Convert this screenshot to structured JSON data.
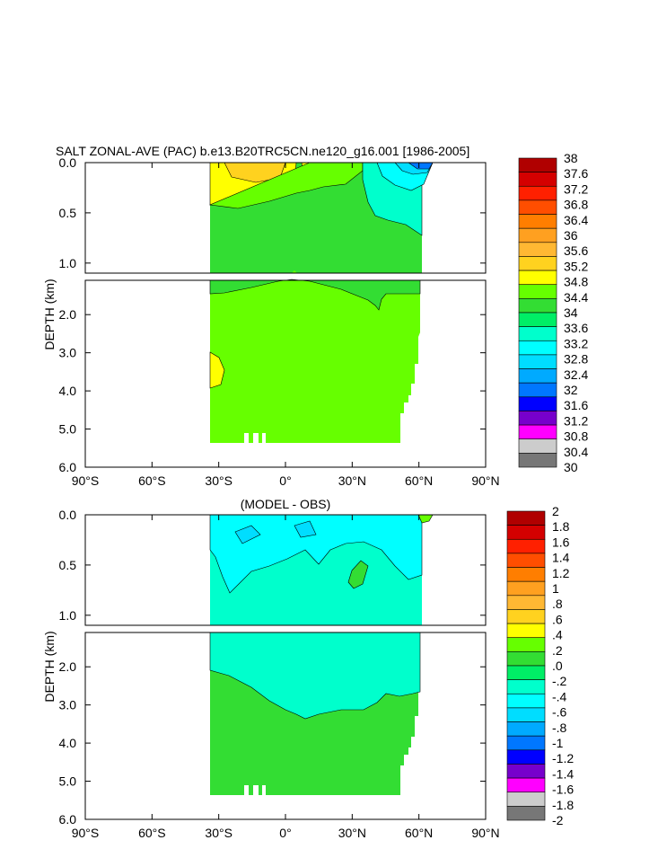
{
  "chart_data": [
    {
      "type": "heatmap",
      "title": "SALT ZONAL-AVE (PAC) b.e13.B20TRC5CN.ne120_g16.001 [1986-2005]",
      "ylabel": "DEPTH (km)",
      "xlabel": "",
      "x_ticks": [
        "90°S",
        "60°S",
        "30°S",
        "0°",
        "30°N",
        "60°N",
        "90°N"
      ],
      "xlim": [
        -90,
        90
      ],
      "y_ticks_upper": [
        "0.0",
        "0.5",
        "1.0"
      ],
      "y_ticks_lower": [
        "2.0",
        "3.0",
        "4.0",
        "5.0",
        "6.0"
      ],
      "ylim": [
        0,
        6
      ],
      "colorbar": {
        "labels": [
          "38",
          "37.6",
          "37.2",
          "36.8",
          "36.4",
          "36",
          "35.6",
          "35.2",
          "34.8",
          "34.4",
          "34",
          "33.6",
          "33.2",
          "32.8",
          "32.4",
          "32",
          "31.6",
          "31.2",
          "30.8",
          "30.4",
          "30"
        ],
        "colors": [
          "#b00000",
          "#d40000",
          "#ff2000",
          "#ff4e00",
          "#ff7e00",
          "#ffa020",
          "#ffb833",
          "#ffd21f",
          "#ffff00",
          "#66ff00",
          "#33dd33",
          "#00ee66",
          "#00ffcc",
          "#00ffff",
          "#00ddff",
          "#00aaff",
          "#0077ff",
          "#0000ff",
          "#7700cc",
          "#ff00ff",
          "#cccccc",
          "#777777"
        ]
      }
    },
    {
      "type": "heatmap",
      "title": "(MODEL - OBS)",
      "ylabel": "DEPTH (km)",
      "xlabel": "",
      "x_ticks": [
        "90°S",
        "60°S",
        "30°S",
        "0°",
        "30°N",
        "60°N",
        "90°N"
      ],
      "xlim": [
        -90,
        90
      ],
      "y_ticks_upper": [
        "0.0",
        "0.5",
        "1.0"
      ],
      "y_ticks_lower": [
        "2.0",
        "3.0",
        "4.0",
        "5.0",
        "6.0"
      ],
      "ylim": [
        0,
        6
      ],
      "colorbar": {
        "labels": [
          "2",
          "1.8",
          "1.6",
          "1.4",
          "1.2",
          "1",
          ".8",
          ".6",
          ".4",
          ".2",
          ".0",
          "-.2",
          "-.4",
          "-.6",
          "-.8",
          "-1",
          "-1.2",
          "-1.4",
          "-1.6",
          "-1.8",
          "-2"
        ],
        "colors": [
          "#b00000",
          "#d40000",
          "#ff2000",
          "#ff4e00",
          "#ff7e00",
          "#ffa020",
          "#ffb833",
          "#ffd21f",
          "#ffff00",
          "#66ff00",
          "#33dd33",
          "#00ee66",
          "#00ffcc",
          "#00ffff",
          "#00ddff",
          "#00aaff",
          "#0077ff",
          "#0000ff",
          "#7700cc",
          "#ff00ff",
          "#cccccc",
          "#777777"
        ]
      }
    }
  ]
}
